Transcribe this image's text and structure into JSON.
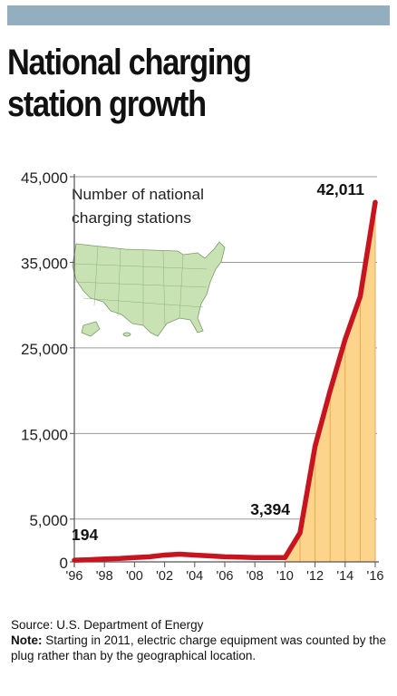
{
  "header": {
    "title_line1": "National charging",
    "title_line2": "station growth"
  },
  "colors": {
    "header_bar": "#93aebe",
    "line": "#c8141e",
    "area_fill": "#fcd48c",
    "map_fill": "#c8e2b4",
    "grid": "#9a9a9a"
  },
  "chart_data": {
    "type": "area",
    "title": "National charging station growth",
    "legend_note": "Number of national charging stations",
    "legend_line1": "Number of national",
    "legend_line2": "charging stations",
    "x": [
      "1996",
      "1997",
      "1998",
      "1999",
      "2000",
      "2001",
      "2002",
      "2003",
      "2004",
      "2005",
      "2006",
      "2007",
      "2008",
      "2009",
      "2010",
      "2011",
      "2012",
      "2013",
      "2014",
      "2015",
      "2016"
    ],
    "values": [
      194,
      250,
      350,
      400,
      500,
      600,
      800,
      900,
      800,
      700,
      600,
      550,
      500,
      500,
      500,
      3394,
      13500,
      20000,
      26000,
      31000,
      42011
    ],
    "shaded_from": "2010",
    "x_tick_labels": [
      "'96",
      "'98",
      "'00",
      "'02",
      "'04",
      "'06",
      "'08",
      "'10",
      "'12",
      "'14",
      "'16"
    ],
    "x_tick_values": [
      "1996",
      "1998",
      "2000",
      "2002",
      "2004",
      "2006",
      "2008",
      "2010",
      "2012",
      "2014",
      "2016"
    ],
    "y_tick_labels": [
      "0",
      "5,000",
      "15,000",
      "25,000",
      "35,000",
      "45,000"
    ],
    "y_tick_values": [
      0,
      5000,
      15000,
      25000,
      35000,
      45000
    ],
    "ylim": [
      0,
      45000
    ],
    "data_labels": [
      {
        "x": "1996",
        "text": "194"
      },
      {
        "x": "2011",
        "text": "3,394"
      },
      {
        "x": "2016",
        "text": "42,011"
      }
    ],
    "grid": true
  },
  "footer": {
    "source": "Source: U.S. Department of Energy",
    "note_label": "Note:",
    "note_text": " Starting in 2011, electric charge equipment was counted by the plug rather than by the geographical location."
  }
}
